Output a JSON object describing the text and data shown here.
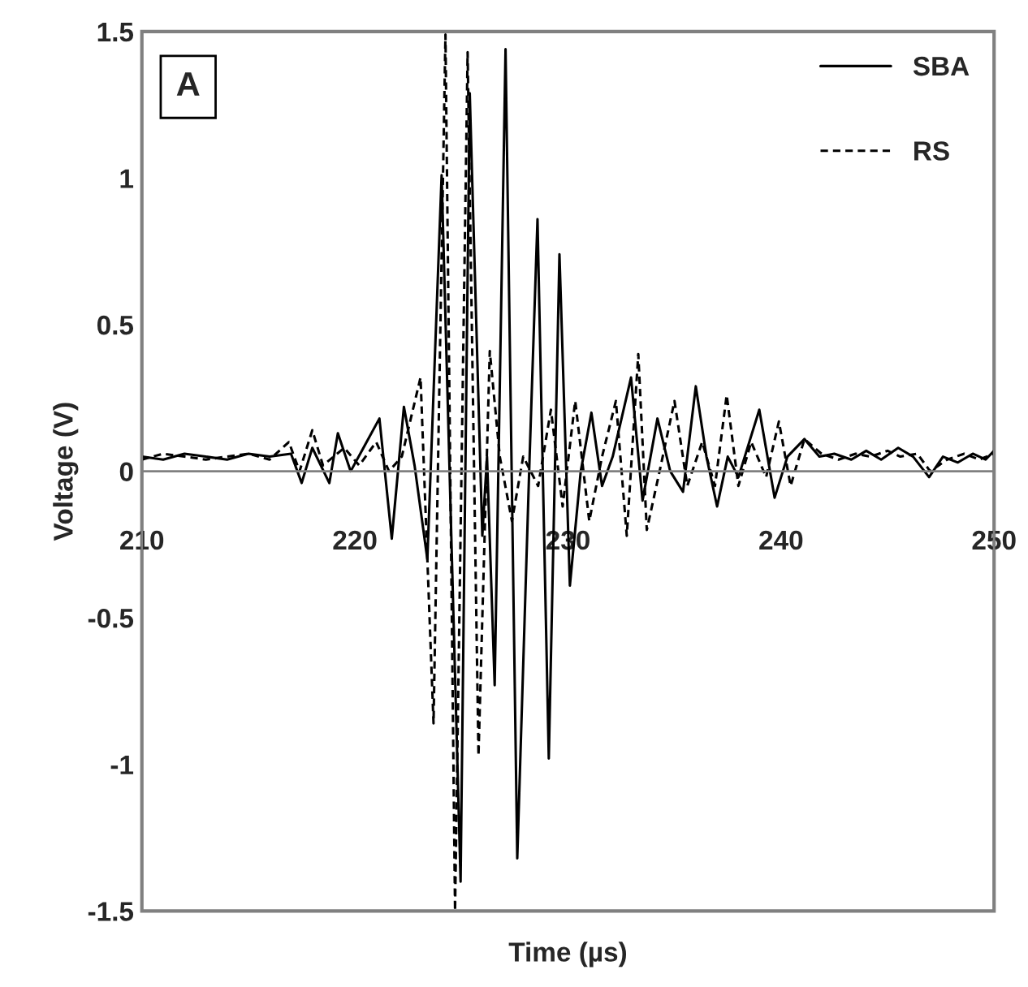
{
  "chart_data": {
    "type": "line",
    "xlabel": "Time (µs)",
    "ylabel": "Voltage (V)",
    "annotations": [
      "A"
    ],
    "xlim": [
      210,
      250
    ],
    "xticks": [
      210,
      220,
      230,
      240,
      250
    ],
    "ylim": [
      -1.5,
      1.5
    ],
    "yticks": [
      -1.5,
      -1,
      -0.5,
      0,
      0.5,
      1,
      1.5
    ],
    "grid": false,
    "legend": "top right",
    "marker": "none",
    "series": [
      {
        "name": "SBA",
        "color": "#000000",
        "line_style": "solid",
        "x": [
          210,
          211,
          212,
          213,
          214,
          215,
          216,
          217,
          217.5,
          218,
          218.8,
          219.2,
          219.8,
          220.4,
          221.15,
          221.73,
          222.3,
          222.8,
          223.4,
          224.07,
          224.96,
          225.39,
          225.98,
          226.2,
          226.56,
          227.07,
          227.62,
          228.2,
          228.57,
          229.1,
          229.6,
          230.09,
          230.6,
          231.1,
          231.6,
          232.1,
          232.96,
          233.5,
          234.2,
          234.8,
          235.4,
          236.0,
          236.5,
          237.0,
          237.5,
          238.0,
          238.98,
          239.7,
          240.3,
          241.1,
          241.8,
          242.5,
          243.3,
          244,
          244.7,
          245.5,
          246.2,
          246.95,
          247.6,
          248.3,
          249,
          249.6,
          250
        ],
        "values": [
          0.05,
          0.04,
          0.06,
          0.05,
          0.04,
          0.06,
          0.05,
          0.06,
          -0.04,
          0.08,
          -0.04,
          0.13,
          0.0,
          0.08,
          0.18,
          -0.23,
          0.22,
          0.02,
          -0.3,
          1.01,
          -1.4,
          1.29,
          -0.22,
          0.05,
          -0.73,
          1.44,
          -1.32,
          0.05,
          0.86,
          -0.98,
          0.74,
          -0.39,
          0.0,
          0.2,
          -0.05,
          0.05,
          0.32,
          -0.1,
          0.18,
          0.0,
          -0.07,
          0.29,
          0.05,
          -0.12,
          0.05,
          -0.02,
          0.21,
          -0.09,
          0.05,
          0.11,
          0.05,
          0.06,
          0.04,
          0.07,
          0.04,
          0.08,
          0.05,
          -0.02,
          0.05,
          0.03,
          0.06,
          0.04,
          0.07
        ]
      },
      {
        "name": "RS",
        "color": "#000000",
        "line_style": "dashed",
        "x": [
          210,
          211,
          212,
          213,
          214,
          215,
          216,
          216.9,
          217.4,
          218,
          218.5,
          219.5,
          220.2,
          221,
          221.6,
          222.2,
          223.08,
          223.69,
          224.25,
          224.7,
          225.29,
          225.8,
          226.33,
          226.8,
          227.37,
          227.9,
          228.6,
          229.2,
          229.75,
          230.34,
          231.0,
          231.6,
          232.25,
          232.76,
          233.3,
          233.7,
          234.3,
          235.0,
          235.6,
          236.3,
          236.9,
          237.45,
          238.0,
          238.6,
          239.3,
          239.9,
          240.45,
          241.1,
          241.9,
          242.7,
          243.5,
          244.2,
          245,
          245.6,
          246.4,
          247,
          247.8,
          248.6,
          249.3,
          250
        ],
        "values": [
          0.04,
          0.06,
          0.05,
          0.04,
          0.05,
          0.06,
          0.04,
          0.1,
          0.0,
          0.14,
          0.02,
          0.08,
          0.02,
          0.1,
          0.0,
          0.05,
          0.32,
          -0.86,
          1.49,
          -1.5,
          1.43,
          -0.97,
          0.41,
          0.05,
          -0.17,
          0.05,
          -0.05,
          0.21,
          -0.12,
          0.24,
          -0.17,
          0.05,
          0.24,
          -0.22,
          0.4,
          -0.2,
          0.0,
          0.24,
          -0.05,
          0.1,
          -0.05,
          0.26,
          -0.05,
          0.1,
          -0.02,
          0.17,
          -0.05,
          0.11,
          0.06,
          0.04,
          0.06,
          0.05,
          0.07,
          0.05,
          0.06,
          0.0,
          0.04,
          0.06,
          0.04,
          0.06
        ]
      }
    ]
  }
}
